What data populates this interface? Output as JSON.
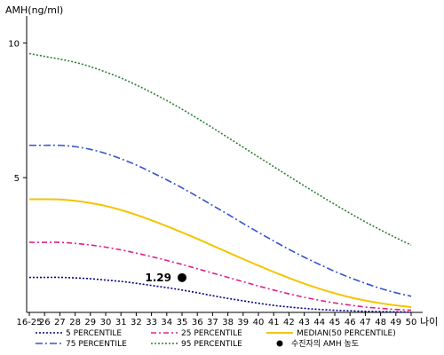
{
  "chart_data": {
    "type": "line",
    "ylabel": "AMH(ng/ml)",
    "xlabel": "나이",
    "ylim": [
      0,
      11
    ],
    "yticks": [
      5,
      10
    ],
    "categories": [
      "16-25",
      "26",
      "27",
      "28",
      "29",
      "30",
      "31",
      "32",
      "33",
      "34",
      "35",
      "36",
      "37",
      "38",
      "39",
      "40",
      "41",
      "42",
      "43",
      "44",
      "45",
      "46",
      "47",
      "48",
      "49",
      "50"
    ],
    "series": [
      {
        "name": "5 PERCENTILE",
        "color": "#000080",
        "dash": "2,2",
        "values": [
          1.3,
          1.3,
          1.3,
          1.28,
          1.25,
          1.2,
          1.15,
          1.08,
          1.0,
          0.92,
          0.83,
          0.73,
          0.62,
          0.52,
          0.43,
          0.34,
          0.26,
          0.2,
          0.15,
          0.11,
          0.08,
          0.06,
          0.04,
          0.03,
          0.02,
          0.01
        ]
      },
      {
        "name": "25 PERCENTILE",
        "color": "#e0208a",
        "dash": "6,3,2,3",
        "values": [
          2.6,
          2.6,
          2.6,
          2.56,
          2.5,
          2.42,
          2.32,
          2.2,
          2.07,
          1.93,
          1.78,
          1.62,
          1.46,
          1.3,
          1.14,
          0.98,
          0.83,
          0.69,
          0.56,
          0.45,
          0.35,
          0.27,
          0.2,
          0.15,
          0.11,
          0.08
        ]
      },
      {
        "name": "MEDIAN(50 PERCENTILE)",
        "color": "#f5c400",
        "dash": "",
        "values": [
          4.2,
          4.2,
          4.19,
          4.14,
          4.06,
          3.95,
          3.8,
          3.62,
          3.42,
          3.2,
          2.97,
          2.73,
          2.48,
          2.23,
          1.98,
          1.74,
          1.5,
          1.28,
          1.07,
          0.88,
          0.71,
          0.56,
          0.44,
          0.34,
          0.26,
          0.2
        ]
      },
      {
        "name": "75 PERCENTILE",
        "color": "#3355cc",
        "dash": "8,3,2,3",
        "values": [
          6.2,
          6.2,
          6.2,
          6.15,
          6.05,
          5.9,
          5.7,
          5.47,
          5.2,
          4.92,
          4.62,
          4.3,
          3.97,
          3.64,
          3.3,
          2.97,
          2.65,
          2.34,
          2.05,
          1.78,
          1.52,
          1.29,
          1.08,
          0.89,
          0.73,
          0.6
        ]
      },
      {
        "name": "95 PERCENTILE",
        "color": "#2e7d32",
        "dash": "2,2",
        "values": [
          9.6,
          9.5,
          9.4,
          9.28,
          9.12,
          8.92,
          8.7,
          8.44,
          8.16,
          7.86,
          7.54,
          7.2,
          6.85,
          6.49,
          6.13,
          5.77,
          5.41,
          5.05,
          4.7,
          4.35,
          4.01,
          3.68,
          3.36,
          3.06,
          2.77,
          2.5
        ]
      }
    ],
    "annotation": {
      "label": "1.29",
      "x": "35",
      "y": 1.29,
      "legend": "수진자의 AMH 농도"
    },
    "legend_position": "bottom",
    "grid": false
  }
}
